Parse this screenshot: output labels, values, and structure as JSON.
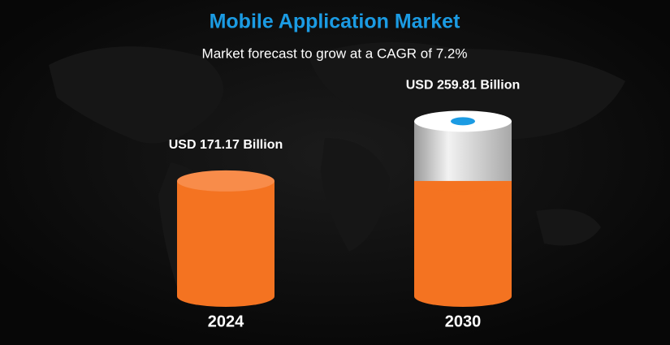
{
  "chart_data": {
    "type": "bar",
    "title": "Mobile Application Market",
    "subtitle": "Market forecast to grow at a CAGR of 7.2%",
    "categories": [
      "2024",
      "2030"
    ],
    "values": [
      171.17,
      259.81
    ],
    "value_labels": [
      "USD 171.17 Billion",
      "USD 259.81 Billion"
    ],
    "color": "#f47321"
  }
}
